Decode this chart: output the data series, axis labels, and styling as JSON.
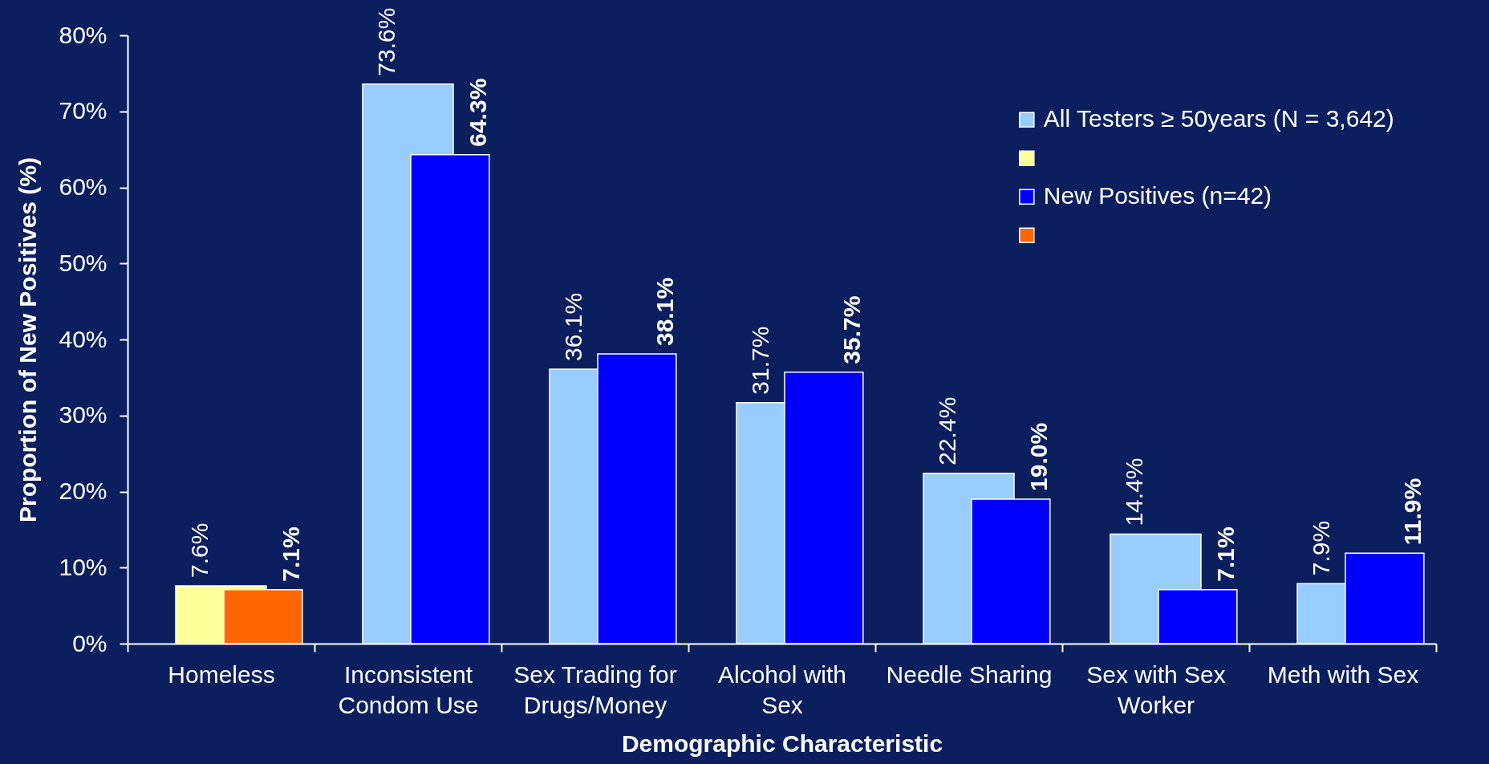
{
  "chart_data": {
    "type": "bar",
    "xlabel": "Demographic Characteristic",
    "ylabel": "Proportion of New Positives (%)",
    "categories": [
      "Homeless",
      "Inconsistent Condom Use",
      "Sex Trading for Drugs/Money",
      "Alcohol with Sex",
      "Needle Sharing",
      "Sex with Sex Worker",
      "Meth with Sex"
    ],
    "series": [
      {
        "name": "All Testers ≥ 50years (N = 3,642)",
        "color": "#99ccff",
        "colors": [
          "#ffff99",
          "#99ccff",
          "#99ccff",
          "#99ccff",
          "#99ccff",
          "#99ccff",
          "#99ccff"
        ],
        "values": [
          7.6,
          73.6,
          36.1,
          31.7,
          22.4,
          14.4,
          7.9
        ],
        "value_labels": [
          "7.6%",
          "73.6%",
          "36.1%",
          "31.7%",
          "22.4%",
          "14.4%",
          "7.9%"
        ]
      },
      {
        "name": "New Positives (n=42)",
        "color": "#0000ff",
        "colors": [
          "#ff6600",
          "#0000ff",
          "#0000ff",
          "#0000ff",
          "#0000ff",
          "#0000ff",
          "#0000ff"
        ],
        "values": [
          7.1,
          64.3,
          38.1,
          35.7,
          19.0,
          7.1,
          11.9
        ],
        "value_labels": [
          "7.1%",
          "64.3%",
          "38.1%",
          "35.7%",
          "19.0%",
          "7.1%",
          "11.9%"
        ]
      }
    ],
    "ylim": [
      0,
      80
    ],
    "yticks": [
      {
        "value": 0,
        "label": "0%"
      },
      {
        "value": 10,
        "label": "10%"
      },
      {
        "value": 20,
        "label": "20%"
      },
      {
        "value": 30,
        "label": "30%"
      },
      {
        "value": 40,
        "label": "40%"
      },
      {
        "value": 50,
        "label": "50%"
      },
      {
        "value": 60,
        "label": "60%"
      },
      {
        "value": 70,
        "label": "70%"
      },
      {
        "value": 80,
        "label": "80%"
      }
    ],
    "legend": "top right"
  }
}
